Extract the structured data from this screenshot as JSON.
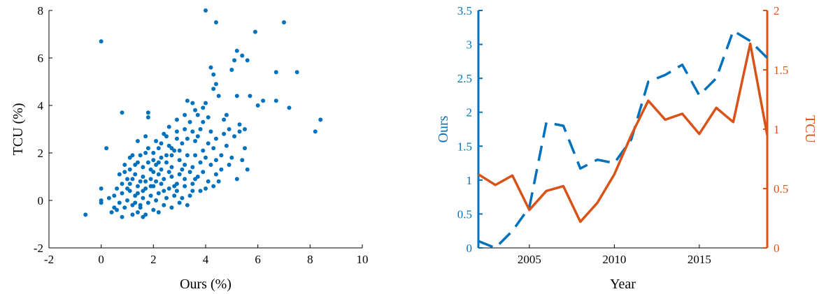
{
  "chart_data": [
    {
      "type": "scatter",
      "xlabel": "Ours (%)",
      "ylabel": "TCU (%)",
      "xlim": [
        -2,
        10
      ],
      "ylim": [
        -2,
        8
      ],
      "xticks": [
        -2,
        0,
        2,
        4,
        6,
        8,
        10
      ],
      "yticks": [
        -2,
        0,
        2,
        4,
        6,
        8
      ],
      "color": "#0072BD",
      "points": [
        [
          -0.6,
          -0.6
        ],
        [
          0,
          6.7
        ],
        [
          0.2,
          2.2
        ],
        [
          0.8,
          3.7
        ],
        [
          1.8,
          3.7
        ],
        [
          1.8,
          3.5
        ],
        [
          4,
          8
        ],
        [
          4.4,
          7.5
        ],
        [
          5.9,
          7.1
        ],
        [
          7,
          7.5
        ],
        [
          4.2,
          5.6
        ],
        [
          4.3,
          5.3
        ],
        [
          5.2,
          6.3
        ],
        [
          5.4,
          6.1
        ],
        [
          5.6,
          5.9
        ],
        [
          5.1,
          5.9
        ],
        [
          4.4,
          4.9
        ],
        [
          4.5,
          4.4
        ],
        [
          5,
          5.5
        ],
        [
          4.3,
          4.7
        ],
        [
          6.7,
          5.4
        ],
        [
          7.5,
          5.4
        ],
        [
          6.2,
          4.2
        ],
        [
          6.7,
          4.2
        ],
        [
          6,
          4
        ],
        [
          5.2,
          4.4
        ],
        [
          5.7,
          4.4
        ],
        [
          7.2,
          3.9
        ],
        [
          8.4,
          3.4
        ],
        [
          8.2,
          2.9
        ],
        [
          4,
          4.1
        ],
        [
          3.5,
          4.1
        ],
        [
          3.3,
          4.2
        ],
        [
          3.9,
          3.9
        ],
        [
          3.6,
          3.8
        ],
        [
          3.2,
          3.6
        ],
        [
          3.7,
          3.6
        ],
        [
          4.1,
          3.5
        ],
        [
          3.9,
          3.3
        ],
        [
          4.7,
          3.4
        ],
        [
          4.8,
          3.6
        ],
        [
          5.3,
          3.2
        ],
        [
          5.5,
          3
        ],
        [
          5.3,
          2.9
        ],
        [
          4.9,
          3
        ],
        [
          4.7,
          2.8
        ],
        [
          4.4,
          2.6
        ],
        [
          4.1,
          2.4
        ],
        [
          5.5,
          2.2
        ],
        [
          5,
          1.8
        ],
        [
          4.4,
          1.7
        ],
        [
          4.2,
          1.5
        ],
        [
          4.6,
          1.3
        ],
        [
          5.6,
          1.3
        ],
        [
          5.2,
          0.9
        ],
        [
          4.5,
          0.8
        ],
        [
          4,
          0.5
        ],
        [
          3.8,
          0.4
        ],
        [
          3.4,
          0.2
        ],
        [
          3.1,
          0.1
        ],
        [
          3.7,
          2.7
        ],
        [
          3.5,
          2.9
        ],
        [
          3.2,
          3
        ],
        [
          3.6,
          2.5
        ],
        [
          3.1,
          2.4
        ],
        [
          2.9,
          2.6
        ],
        [
          2.6,
          2.3
        ],
        [
          2.8,
          2.1
        ],
        [
          2.4,
          2.8
        ],
        [
          2.1,
          2.5
        ],
        [
          2.6,
          3.1
        ],
        [
          2.9,
          3.4
        ],
        [
          2.5,
          2.7
        ],
        [
          2.7,
          1.9
        ],
        [
          2.3,
          1.8
        ],
        [
          2,
          1.7
        ],
        [
          1.7,
          2
        ],
        [
          1.5,
          1.9
        ],
        [
          1.8,
          2.2
        ],
        [
          1.2,
          1.9
        ],
        [
          0.9,
          1.5
        ],
        [
          1.1,
          1.3
        ],
        [
          1.4,
          1.6
        ],
        [
          1.9,
          1.3
        ],
        [
          2.1,
          1.5
        ],
        [
          2.5,
          1.6
        ],
        [
          3,
          1.7
        ],
        [
          3.3,
          1.9
        ],
        [
          3.5,
          1.4
        ],
        [
          3.8,
          1.6
        ],
        [
          3,
          1.1
        ],
        [
          2.7,
          1
        ],
        [
          2.4,
          0.9
        ],
        [
          2.2,
          1.1
        ],
        [
          1.9,
          0.9
        ],
        [
          1.6,
          1
        ],
        [
          1.3,
          1.1
        ],
        [
          1,
          0.9
        ],
        [
          0.8,
          0.7
        ],
        [
          0.6,
          0.5
        ],
        [
          0.5,
          0.2
        ],
        [
          0.8,
          0.3
        ],
        [
          1.1,
          0.4
        ],
        [
          1.4,
          0.6
        ],
        [
          1.7,
          0.5
        ],
        [
          2,
          0.6
        ],
        [
          2.3,
          0.7
        ],
        [
          2.6,
          0.5
        ],
        [
          2.9,
          0.7
        ],
        [
          3.2,
          0.6
        ],
        [
          2.8,
          0.2
        ],
        [
          2.5,
          0.1
        ],
        [
          2.2,
          0.3
        ],
        [
          1.9,
          0.2
        ],
        [
          1.6,
          0.1
        ],
        [
          1.3,
          0.2
        ],
        [
          1,
          0
        ],
        [
          0.7,
          -0.1
        ],
        [
          0.5,
          -0.3
        ],
        [
          0.4,
          -0.5
        ],
        [
          0.6,
          -0.4
        ],
        [
          0.9,
          -0.3
        ],
        [
          1.2,
          -0.2
        ],
        [
          1.5,
          -0.3
        ],
        [
          1.8,
          -0.1
        ],
        [
          2.1,
          0
        ],
        [
          2.4,
          -0.2
        ],
        [
          2.7,
          -0.3
        ],
        [
          3,
          -0.1
        ],
        [
          3.3,
          -0.2
        ],
        [
          1.4,
          -0.5
        ],
        [
          1.7,
          -0.6
        ],
        [
          2,
          -0.4
        ],
        [
          1.2,
          -0.6
        ],
        [
          0.8,
          -0.7
        ],
        [
          1.6,
          -0.7
        ],
        [
          2.2,
          -0.5
        ],
        [
          1.5,
          -0.2
        ],
        [
          1.3,
          -0.1
        ],
        [
          1,
          0.5
        ],
        [
          0,
          0.5
        ],
        [
          0,
          0
        ],
        [
          0,
          -0.1
        ],
        [
          0.3,
          0.1
        ],
        [
          0.7,
          1.1
        ],
        [
          1.4,
          2.5
        ],
        [
          1.7,
          2.7
        ],
        [
          2.2,
          2.2
        ],
        [
          2.9,
          2.9
        ],
        [
          3.4,
          3.3
        ],
        [
          3.8,
          3
        ],
        [
          4.2,
          2.9
        ],
        [
          3.9,
          2.1
        ],
        [
          4.3,
          2.2
        ],
        [
          3.6,
          1.9
        ],
        [
          4,
          1.8
        ],
        [
          3.1,
          1.3
        ],
        [
          2.7,
          1.4
        ],
        [
          1.8,
          1.6
        ],
        [
          2.6,
          1.2
        ],
        [
          2.3,
          1.3
        ],
        [
          2.1,
          0.8
        ],
        [
          1.6,
          0.4
        ],
        [
          1.5,
          0.8
        ],
        [
          1.1,
          0.7
        ],
        [
          1.9,
          0.6
        ],
        [
          2.4,
          0.4
        ],
        [
          2.8,
          0.6
        ],
        [
          3.5,
          0.7
        ],
        [
          3.7,
          1
        ],
        [
          4.4,
          1.1
        ],
        [
          4.6,
          1.9
        ],
        [
          4.8,
          2.3
        ],
        [
          5.1,
          2.7
        ],
        [
          4.9,
          1.5
        ],
        [
          5.4,
          1.7
        ],
        [
          3.3,
          2.6
        ],
        [
          2.3,
          2.4
        ],
        [
          2,
          2
        ],
        [
          1.6,
          1.4
        ],
        [
          1.3,
          1.5
        ],
        [
          1.1,
          1.8
        ],
        [
          0.9,
          1.2
        ],
        [
          1.2,
          0.9
        ],
        [
          1.4,
          0.3
        ],
        [
          1.7,
          0.8
        ],
        [
          2,
          1.2
        ],
        [
          2.2,
          1.6
        ],
        [
          2.5,
          1.9
        ],
        [
          2.7,
          2.2
        ],
        [
          3,
          2.1
        ],
        [
          3.2,
          1.5
        ],
        [
          3.4,
          1.2
        ],
        [
          3.6,
          0.9
        ],
        [
          3.9,
          1.2
        ],
        [
          4.1,
          0.8
        ],
        [
          4.3,
          0.6
        ],
        [
          3.5,
          0.4
        ],
        [
          3.2,
          0.9
        ],
        [
          2.9,
          0.4
        ]
      ]
    },
    {
      "type": "line",
      "xlabel": "Year",
      "xlim": [
        2002,
        2019
      ],
      "xticks": [
        2005,
        2010,
        2015
      ],
      "y_left": {
        "label": "Ours",
        "lim": [
          0,
          3.5
        ],
        "ticks": [
          "0",
          "0.5",
          "1",
          "1.5",
          "2",
          "2.5",
          "3",
          "3.5"
        ],
        "color": "#0072BD"
      },
      "y_right": {
        "label": "TCU",
        "lim": [
          0,
          2
        ],
        "ticks": [
          "0",
          "0.5",
          "1",
          "1.5",
          "2"
        ],
        "color": "#D95319"
      },
      "x": [
        2002,
        2003,
        2004,
        2005,
        2006,
        2007,
        2008,
        2009,
        2010,
        2011,
        2012,
        2013,
        2014,
        2015,
        2016,
        2017,
        2018,
        2019
      ],
      "series": [
        {
          "name": "Ours",
          "axis": "left",
          "style": "dashed",
          "color": "#0072BD",
          "values": [
            0.1,
            0.0,
            0.25,
            0.6,
            1.85,
            1.8,
            1.17,
            1.3,
            1.25,
            1.6,
            2.45,
            2.55,
            2.7,
            2.25,
            2.5,
            3.2,
            3.05,
            2.8
          ]
        },
        {
          "name": "TCU",
          "axis": "right",
          "style": "solid",
          "color": "#D95319",
          "values": [
            0.62,
            0.53,
            0.61,
            0.32,
            0.48,
            0.52,
            0.22,
            0.38,
            0.62,
            0.95,
            1.24,
            1.08,
            1.13,
            0.96,
            1.18,
            1.06,
            1.72,
            0.95
          ]
        }
      ]
    }
  ]
}
